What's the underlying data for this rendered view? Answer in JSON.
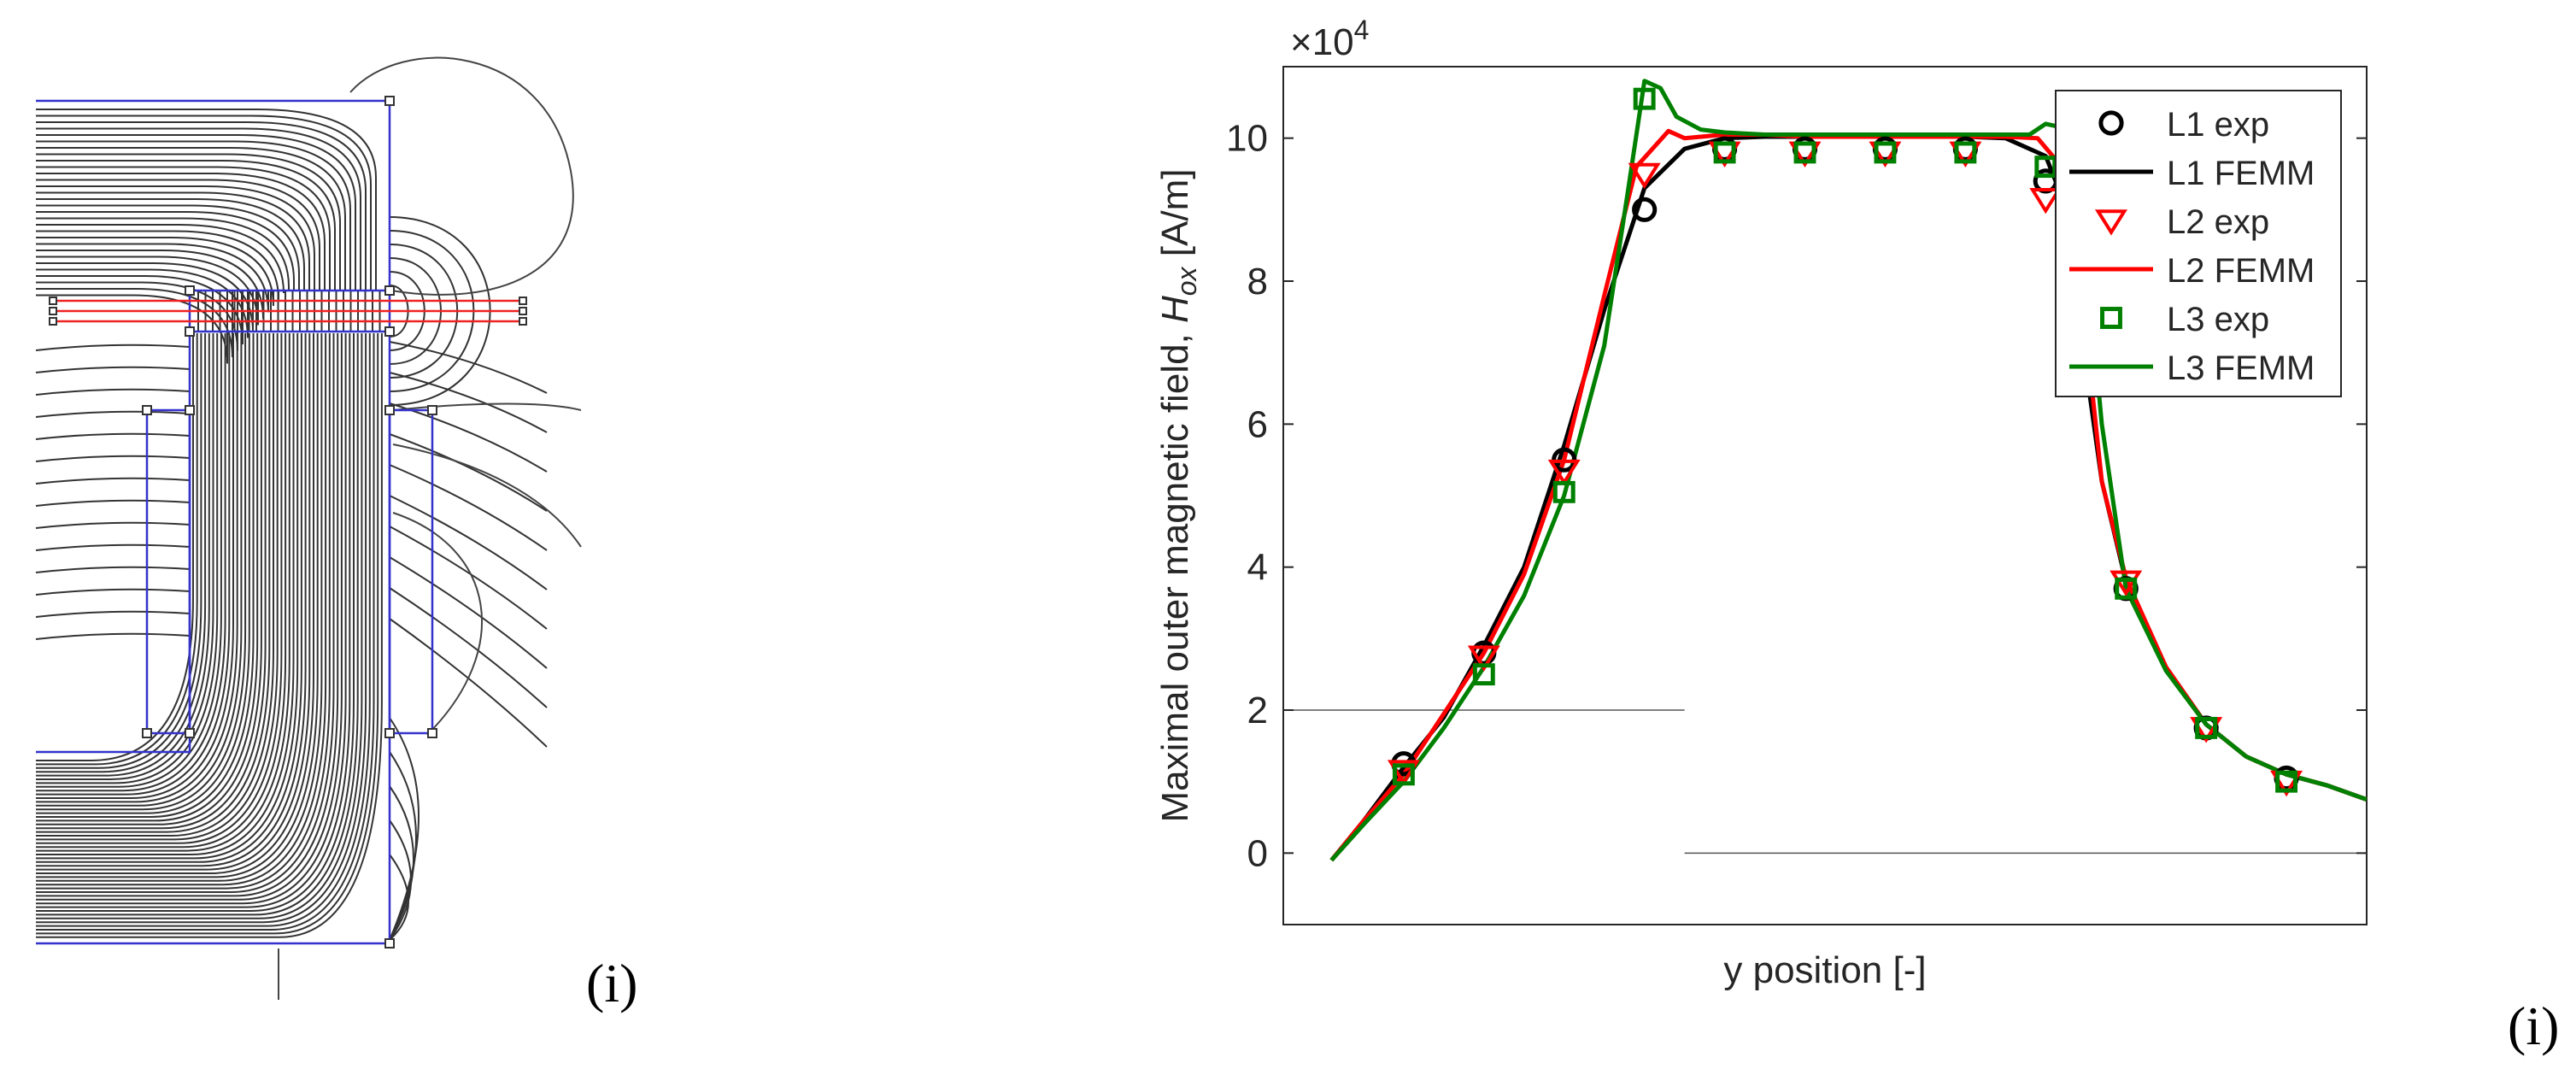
{
  "panel_left": {
    "label": "(i)"
  },
  "panel_right": {
    "label": "(i)"
  },
  "chart_data": {
    "type": "line",
    "title": "",
    "xlabel": "y position [-]",
    "ylabel_text": "Maximal outer magnetic field, ",
    "ylabel_symbol": "H",
    "ylabel_subscript": "ox",
    "ylabel_unit": " [A/m]",
    "y_exponent_base": "×10",
    "y_exponent_power": "4",
    "xlim": [
      0,
      13.5
    ],
    "ylim": [
      -1,
      11
    ],
    "yticks": [
      0,
      2,
      4,
      6,
      8,
      10
    ],
    "ytick_labels": [
      "0",
      "2",
      "4",
      "6",
      "8",
      "10"
    ],
    "grid": false,
    "legend_position": "top-right",
    "reference_lines": [
      {
        "y": 2,
        "x_from": 0,
        "x_to": 5
      },
      {
        "y": 0,
        "x_from": 5,
        "x_to": 13.5
      }
    ],
    "series": [
      {
        "name": "L1 exp",
        "kind": "marker",
        "marker": "circle",
        "color": "#000000",
        "x": [
          1.5,
          2.5,
          3.5,
          4.5,
          5.5,
          6.5,
          7.5,
          8.5,
          9.5,
          10.5,
          11.5,
          12.5
        ],
        "y": [
          1.25,
          2.8,
          5.5,
          9.0,
          9.85,
          9.85,
          9.85,
          9.85,
          9.4,
          3.7,
          1.75,
          1.05
        ]
      },
      {
        "name": "L1 FEMM",
        "kind": "line",
        "color": "#000000",
        "x": [
          0.6,
          1.0,
          1.5,
          2.0,
          2.5,
          3.0,
          3.5,
          4.0,
          4.5,
          5.0,
          5.5,
          6.0,
          6.5,
          7.0,
          7.5,
          8.0,
          8.5,
          9.0,
          9.5,
          9.8,
          10.0,
          10.2,
          10.5,
          11.0,
          11.5,
          12.0,
          12.5,
          13.0,
          13.5
        ],
        "y": [
          -0.1,
          0.45,
          1.2,
          1.9,
          2.9,
          4.0,
          5.7,
          7.6,
          9.3,
          9.85,
          10.0,
          10.02,
          10.02,
          10.02,
          10.02,
          10.02,
          10.02,
          10.0,
          9.75,
          8.9,
          6.8,
          5.2,
          3.8,
          2.6,
          1.8,
          1.35,
          1.1,
          0.95,
          0.75
        ]
      },
      {
        "name": "L2 exp",
        "kind": "marker",
        "marker": "triangle-down",
        "color": "#ff0000",
        "x": [
          1.5,
          2.5,
          3.5,
          4.5,
          5.5,
          6.5,
          7.5,
          8.5,
          9.5,
          10.5,
          11.5,
          12.5
        ],
        "y": [
          1.15,
          2.75,
          5.35,
          9.5,
          9.8,
          9.8,
          9.8,
          9.8,
          9.15,
          3.8,
          1.75,
          1.0
        ]
      },
      {
        "name": "L2 FEMM",
        "kind": "line",
        "color": "#ff0000",
        "x": [
          0.6,
          1.0,
          1.5,
          2.0,
          2.5,
          3.0,
          3.5,
          4.0,
          4.4,
          4.8,
          5.0,
          5.5,
          6.0,
          6.5,
          7.0,
          7.5,
          8.0,
          8.5,
          9.0,
          9.4,
          9.7,
          10.0,
          10.2,
          10.5,
          11.0,
          11.5,
          12.0,
          12.5,
          13.0,
          13.5
        ],
        "y": [
          -0.1,
          0.45,
          1.1,
          1.95,
          2.8,
          3.9,
          5.5,
          7.8,
          9.6,
          10.1,
          10.0,
          10.05,
          10.05,
          10.02,
          10.02,
          10.02,
          10.02,
          10.02,
          10.02,
          10.0,
          9.6,
          7.3,
          5.2,
          3.85,
          2.6,
          1.8,
          1.35,
          1.1,
          0.95,
          0.75
        ]
      },
      {
        "name": "L3 exp",
        "kind": "marker",
        "marker": "square",
        "color": "#008000",
        "x": [
          1.5,
          2.5,
          3.5,
          4.5,
          5.5,
          6.5,
          7.5,
          8.5,
          9.5,
          10.5,
          11.5,
          12.5
        ],
        "y": [
          1.1,
          2.5,
          5.05,
          10.55,
          9.8,
          9.8,
          9.8,
          9.8,
          9.6,
          3.7,
          1.75,
          1.0
        ]
      },
      {
        "name": "L3 FEMM",
        "kind": "line",
        "color": "#008000",
        "x": [
          0.6,
          1.0,
          1.5,
          2.0,
          2.5,
          3.0,
          3.5,
          4.0,
          4.3,
          4.5,
          4.7,
          4.9,
          5.2,
          5.5,
          6.0,
          6.5,
          7.0,
          7.5,
          8.0,
          8.5,
          9.0,
          9.3,
          9.5,
          9.7,
          9.9,
          10.2,
          10.5,
          11.0,
          11.5,
          12.0,
          12.5,
          13.0,
          13.5
        ],
        "y": [
          -0.1,
          0.4,
          1.0,
          1.75,
          2.6,
          3.6,
          5.0,
          7.1,
          9.3,
          10.8,
          10.7,
          10.3,
          10.12,
          10.08,
          10.05,
          10.05,
          10.05,
          10.05,
          10.05,
          10.05,
          10.05,
          10.05,
          10.2,
          10.15,
          9.6,
          6.0,
          3.7,
          2.55,
          1.8,
          1.35,
          1.1,
          0.95,
          0.75
        ]
      }
    ]
  }
}
